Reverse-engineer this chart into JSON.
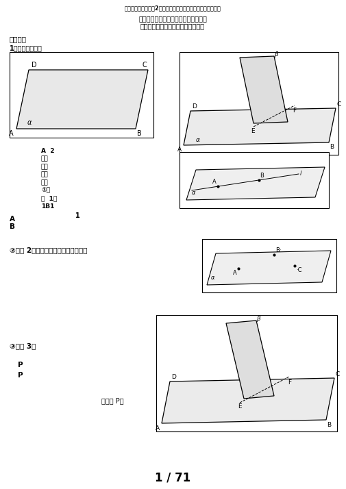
{
  "title": "完整版高中数学必修2《点、直线、平面之间位置关系》知识点",
  "subtitle1": "第二章点、直线、平面之间的位置关系",
  "subtitle2": "空间点、直线、平面之间的位置关系",
  "section1": "一、平面",
  "item1": "1、平面及其表示",
  "item2_line1": "A  2",
  "item2_line2": "、平",
  "item2_line3": "面的",
  "item2_line4": "根本",
  "item2_line5": "性质",
  "item2_line6": "①公",
  "item2_line7": "理  1：",
  "item2_line8": "1B1",
  "item2_num": "1",
  "ab_a": "A",
  "ab_b": "B",
  "axiom2": "②公理 2：不共线的三点确定一个平面",
  "axiom3_label": "③公理 3：",
  "axiom3_p1": "P",
  "axiom3_p2": "P",
  "axiom3_mid": "｜那么 P｜",
  "page": "1 / 71",
  "bg_color": "#ffffff",
  "text_color": "#000000"
}
